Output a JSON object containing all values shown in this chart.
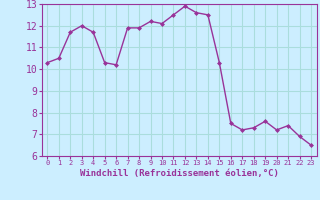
{
  "x": [
    0,
    1,
    2,
    3,
    4,
    5,
    6,
    7,
    8,
    9,
    10,
    11,
    12,
    13,
    14,
    15,
    16,
    17,
    18,
    19,
    20,
    21,
    22,
    23
  ],
  "y": [
    10.3,
    10.5,
    11.7,
    12.0,
    11.7,
    10.3,
    10.2,
    11.9,
    11.9,
    12.2,
    12.1,
    12.5,
    12.9,
    12.6,
    12.5,
    10.3,
    7.5,
    7.2,
    7.3,
    7.6,
    7.2,
    7.4,
    6.9,
    6.5
  ],
  "line_color": "#993399",
  "marker_color": "#993399",
  "bg_color": "#cceeff",
  "grid_color": "#aadddd",
  "axis_color": "#993399",
  "tick_color": "#993399",
  "xlabel": "Windchill (Refroidissement éolien,°C)",
  "ylim": [
    6,
    13
  ],
  "xlim_min": -0.5,
  "xlim_max": 23.5,
  "yticks": [
    6,
    7,
    8,
    9,
    10,
    11,
    12,
    13
  ],
  "xticks": [
    0,
    1,
    2,
    3,
    4,
    5,
    6,
    7,
    8,
    9,
    10,
    11,
    12,
    13,
    14,
    15,
    16,
    17,
    18,
    19,
    20,
    21,
    22,
    23
  ]
}
